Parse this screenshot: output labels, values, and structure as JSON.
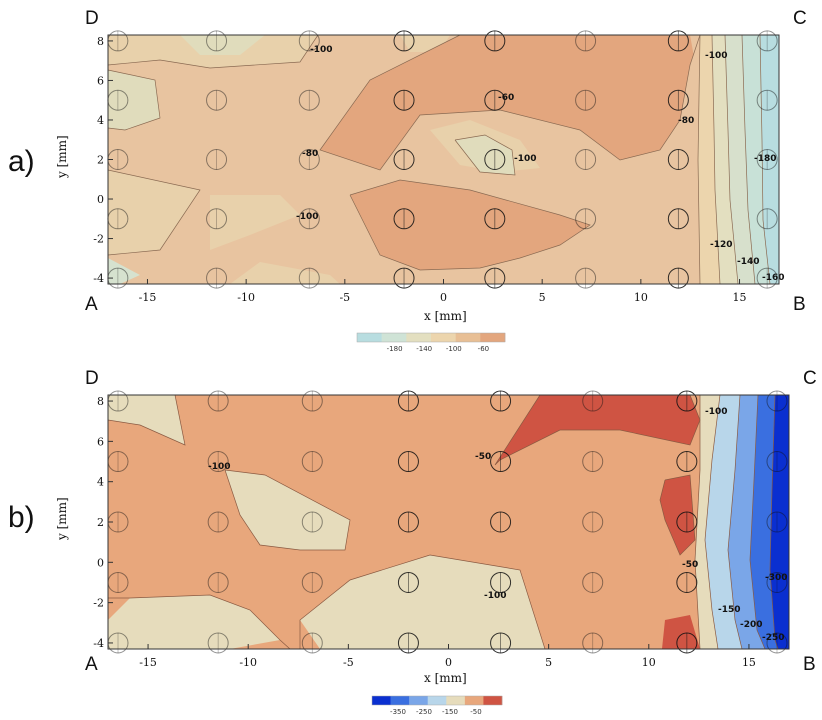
{
  "chart_data": [
    {
      "type": "heatmap",
      "panel_label": "a)",
      "xlabel": "x [mm]",
      "ylabel": "y [mm]",
      "xlim": [
        -17,
        17
      ],
      "ylim": [
        -4.3,
        8.3
      ],
      "x_ticks": [
        "-15",
        "-10",
        "-5",
        "0",
        "5",
        "10",
        "15"
      ],
      "y_ticks": [
        "-4",
        "-2",
        "0",
        "2",
        "4",
        "6",
        "8"
      ],
      "corners": {
        "top_left": "D",
        "top_right": "C",
        "bottom_left": "A",
        "bottom_right": "B"
      },
      "contour_labels": [
        "-100",
        "-60",
        "-100",
        "-80",
        "-80",
        "-100",
        "-180",
        "-100",
        "-120",
        "-140",
        "-160"
      ],
      "colorbar": {
        "ticks": [
          "-180",
          "-140",
          "-100",
          "-60"
        ],
        "colors": [
          "#b8dde0",
          "#cfe3d6",
          "#e3dfc0",
          "#ecd5ad",
          "#e8bf95",
          "#e3a67e"
        ]
      },
      "grid_points": {
        "x": [
          -16.5,
          -11.5,
          -6.8,
          -2,
          2.6,
          7.2,
          11.9,
          16.4
        ],
        "y": [
          -4,
          -1,
          2,
          5,
          8
        ]
      },
      "series": [
        {
          "values": [
            [
              -16.5,
              8,
              -95
            ],
            [
              -11.5,
              8,
              -95
            ],
            [
              -6.8,
              8,
              -100
            ],
            [
              -2,
              8,
              -100
            ],
            [
              2.6,
              8,
              -95
            ],
            [
              7.2,
              8,
              -85
            ],
            [
              11.9,
              8,
              -85
            ],
            [
              16.4,
              8,
              -170
            ],
            [
              -16.5,
              5,
              -105
            ],
            [
              -11.5,
              5,
              -90
            ],
            [
              -6.8,
              5,
              -90
            ],
            [
              -2,
              5,
              -85
            ],
            [
              2.6,
              5,
              -62
            ],
            [
              7.2,
              5,
              -75
            ],
            [
              11.9,
              5,
              -80
            ],
            [
              16.4,
              5,
              -175
            ],
            [
              -16.5,
              2,
              -90
            ],
            [
              -11.5,
              2,
              -90
            ],
            [
              -6.8,
              2,
              -82
            ],
            [
              -2,
              2,
              -82
            ],
            [
              2.6,
              2,
              -105
            ],
            [
              7.2,
              2,
              -80
            ],
            [
              11.9,
              2,
              -85
            ],
            [
              16.4,
              2,
              -185
            ],
            [
              -16.5,
              -1,
              -100
            ],
            [
              -11.5,
              -1,
              -95
            ],
            [
              -6.8,
              -1,
              -105
            ],
            [
              -2,
              -1,
              -80
            ],
            [
              2.6,
              -1,
              -92
            ],
            [
              7.2,
              -1,
              -75
            ],
            [
              11.9,
              -1,
              -95
            ],
            [
              16.4,
              -1,
              -190
            ],
            [
              -16.5,
              -4,
              -110
            ],
            [
              -11.5,
              -4,
              -95
            ],
            [
              -6.8,
              -4,
              -105
            ],
            [
              -2,
              -4,
              -85
            ],
            [
              2.6,
              -4,
              -90
            ],
            [
              7.2,
              -4,
              -90
            ],
            [
              11.9,
              -4,
              -110
            ],
            [
              16.4,
              -4,
              -170
            ]
          ]
        }
      ]
    },
    {
      "type": "heatmap",
      "panel_label": "b)",
      "xlabel": "x [mm]",
      "ylabel": "y [mm]",
      "xlim": [
        -17,
        17
      ],
      "ylim": [
        -4.3,
        8.3
      ],
      "x_ticks": [
        "-15",
        "-10",
        "-5",
        "0",
        "5",
        "10",
        "15"
      ],
      "y_ticks": [
        "-4",
        "-2",
        "0",
        "2",
        "4",
        "6",
        "8"
      ],
      "corners": {
        "top_left": "D",
        "top_right": "C",
        "bottom_left": "A",
        "bottom_right": "B"
      },
      "contour_labels": [
        "-50",
        "-100",
        "-100",
        "-50",
        "-100",
        "-150",
        "-200",
        "-250",
        "-300"
      ],
      "colorbar": {
        "ticks": [
          "-350",
          "-250",
          "-150",
          "-50"
        ],
        "colors": [
          "#0a2fd0",
          "#3a6fe0",
          "#7aa6e8",
          "#b8d6ea",
          "#e6dcbc",
          "#e8a77c",
          "#cf5443"
        ]
      },
      "grid_points": {
        "x": [
          -16.5,
          -11.5,
          -6.8,
          -2,
          2.6,
          7.2,
          11.9,
          16.4
        ],
        "y": [
          -4,
          -1,
          2,
          5,
          8
        ]
      },
      "series": [
        {
          "values": [
            [
              -16.5,
              8,
              -90
            ],
            [
              -11.5,
              8,
              -95
            ],
            [
              -6.8,
              8,
              -90
            ],
            [
              -2,
              8,
              -85
            ],
            [
              2.6,
              8,
              -45
            ],
            [
              7.2,
              8,
              -40
            ],
            [
              11.9,
              8,
              -60
            ],
            [
              16.4,
              8,
              -380
            ],
            [
              -16.5,
              5,
              -90
            ],
            [
              -11.5,
              5,
              -105
            ],
            [
              -6.8,
              5,
              -90
            ],
            [
              -2,
              5,
              -85
            ],
            [
              2.6,
              5,
              -50
            ],
            [
              7.2,
              5,
              -80
            ],
            [
              11.9,
              5,
              -80
            ],
            [
              16.4,
              5,
              -330
            ],
            [
              -16.5,
              2,
              -90
            ],
            [
              -11.5,
              2,
              -110
            ],
            [
              -6.8,
              2,
              -115
            ],
            [
              -2,
              2,
              -85
            ],
            [
              2.6,
              2,
              -85
            ],
            [
              7.2,
              2,
              -80
            ],
            [
              11.9,
              2,
              -45
            ],
            [
              16.4,
              2,
              -320
            ],
            [
              -16.5,
              -1,
              -85
            ],
            [
              -11.5,
              -1,
              -90
            ],
            [
              -6.8,
              -1,
              -90
            ],
            [
              -2,
              -1,
              -105
            ],
            [
              2.6,
              -1,
              -115
            ],
            [
              7.2,
              -1,
              -85
            ],
            [
              11.9,
              -1,
              -75
            ],
            [
              16.4,
              -1,
              -310
            ],
            [
              -16.5,
              -4,
              -95
            ],
            [
              -11.5,
              -4,
              -110
            ],
            [
              -6.8,
              -4,
              -115
            ],
            [
              -2,
              -4,
              -110
            ],
            [
              2.6,
              -4,
              -100
            ],
            [
              7.2,
              -4,
              -85
            ],
            [
              11.9,
              -4,
              -55
            ],
            [
              16.4,
              -4,
              -280
            ]
          ]
        }
      ]
    }
  ]
}
